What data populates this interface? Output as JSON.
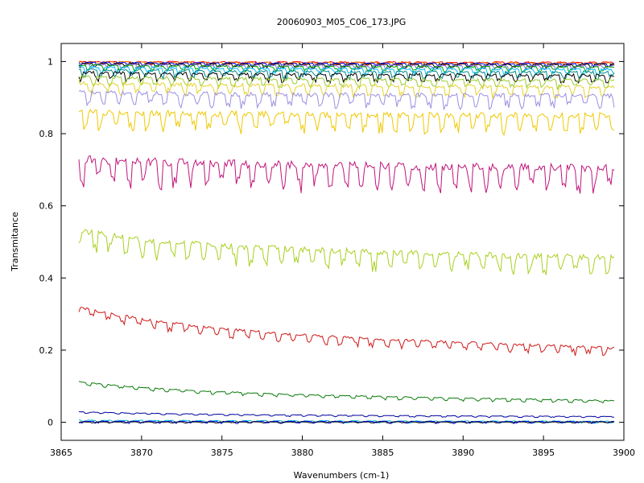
{
  "chart_data": {
    "type": "line",
    "title": "20060903_M05_C06_173.JPG",
    "xlabel": "Wavenumbers (cm-1)",
    "ylabel": "Transmitance",
    "xlim": [
      3865,
      3900
    ],
    "ylim": [
      -0.05,
      1.05
    ],
    "x_data_range": [
      3866.1,
      3899.4
    ],
    "x_ticks": [
      3865,
      3870,
      3875,
      3880,
      3885,
      3890,
      3895,
      3900
    ],
    "y_ticks": [
      0,
      0.2,
      0.4,
      0.6,
      0.8,
      1
    ],
    "x_tick_labels": [
      "3865",
      "3870",
      "3875",
      "3880",
      "3885",
      "3890",
      "3895",
      "3900"
    ],
    "y_tick_labels": [
      "0",
      "0.2",
      "0.4",
      "0.6",
      "0.8",
      "1"
    ],
    "grid": false,
    "legend": "none",
    "series": [
      {
        "color": "#ff0000",
        "y_start": 1.0,
        "y_end": 0.998,
        "noise": 0.003
      },
      {
        "color": "#ff7f00",
        "y_start": 1.0,
        "y_end": 0.996,
        "noise": 0.003
      },
      {
        "color": "#0000ff",
        "y_start": 0.998,
        "y_end": 0.994,
        "noise": 0.003
      },
      {
        "color": "#000000",
        "y_start": 0.995,
        "y_end": 0.992,
        "noise": 0.004
      },
      {
        "color": "#7b68ee",
        "y_start": 0.993,
        "y_end": 0.988,
        "noise": 0.004
      },
      {
        "color": "#00a000",
        "y_start": 0.99,
        "y_end": 0.985,
        "noise": 0.005
      },
      {
        "color": "#00bfff",
        "y_start": 0.985,
        "y_end": 0.978,
        "noise": 0.006
      },
      {
        "color": "#008b8b",
        "y_start": 0.978,
        "y_end": 0.97,
        "noise": 0.007
      },
      {
        "color": "#000000",
        "y_start": 0.97,
        "y_end": 0.962,
        "noise": 0.008
      },
      {
        "color": "#9acd32",
        "y_start": 0.958,
        "y_end": 0.948,
        "noise": 0.009
      },
      {
        "color": "#e6d32e",
        "y_start": 0.94,
        "y_end": 0.93,
        "noise": 0.011
      },
      {
        "color": "#9b8fe0",
        "y_start": 0.915,
        "y_end": 0.905,
        "noise": 0.013
      },
      {
        "color": "#f0c800",
        "y_start": 0.86,
        "y_end": 0.85,
        "noise": 0.018
      },
      {
        "color": "#c0157a",
        "y_start": 0.73,
        "y_end": 0.705,
        "noise": 0.025
      },
      {
        "color": "#a8d020",
        "y_start": 0.53,
        "y_end": 0.455,
        "noise": 0.018
      },
      {
        "color": "#d01818",
        "y_start": 0.32,
        "y_end": 0.205,
        "noise": 0.008
      },
      {
        "color": "#0a7a0a",
        "y_start": 0.112,
        "y_end": 0.06,
        "noise": 0.003
      },
      {
        "color": "#0000a0",
        "y_start": 0.029,
        "y_end": 0.016,
        "noise": 0.0015
      },
      {
        "color": "#00bcd4",
        "y_start": 0.006,
        "y_end": 0.003,
        "noise": 0.002
      },
      {
        "color": "#0000ff",
        "y_start": 0.003,
        "y_end": 0.002,
        "noise": 0.002
      },
      {
        "color": "#000000",
        "y_start": 0.001,
        "y_end": 0.001,
        "noise": 0.001
      }
    ]
  }
}
